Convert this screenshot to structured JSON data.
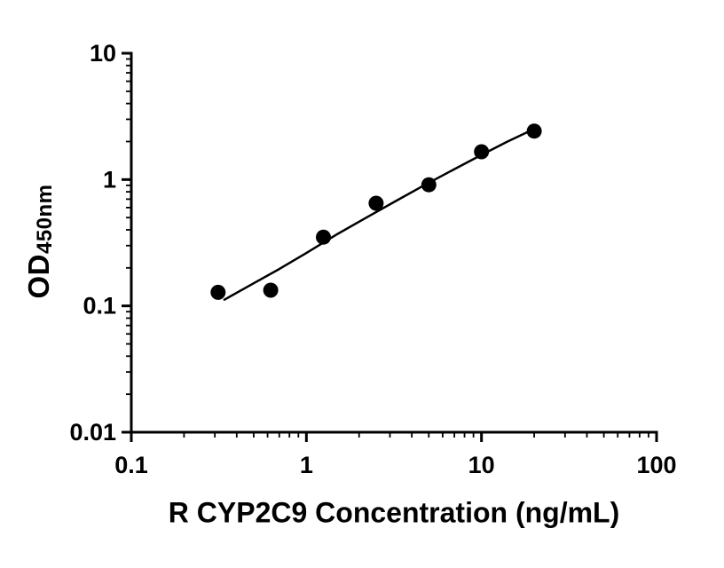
{
  "chart_data": {
    "type": "scatter",
    "title": "",
    "xlabel": "R CYP2C9 Concentration (ng/mL)",
    "ylabel_main": "OD",
    "ylabel_sub": "450nm",
    "x_scale": "log",
    "y_scale": "log",
    "xlim": [
      0.1,
      100
    ],
    "ylim": [
      0.01,
      10
    ],
    "x_ticks": [
      0.1,
      1,
      10,
      100
    ],
    "x_tick_labels": [
      "0.1",
      "1",
      "10",
      "100"
    ],
    "y_ticks": [
      0.01,
      0.1,
      1,
      10
    ],
    "y_tick_labels": [
      "0.01",
      "0.1",
      "1",
      "10"
    ],
    "minor_ticks": true,
    "grid": false,
    "legend": null,
    "background_color": "#ffffff",
    "axis_color": "#000000",
    "point_color": "#000000",
    "line_color": "#000000",
    "points": [
      {
        "x": 0.313,
        "y": 0.128
      },
      {
        "x": 0.625,
        "y": 0.133
      },
      {
        "x": 1.25,
        "y": 0.35
      },
      {
        "x": 2.5,
        "y": 0.65
      },
      {
        "x": 5,
        "y": 0.91
      },
      {
        "x": 10,
        "y": 1.66
      },
      {
        "x": 20,
        "y": 2.42
      }
    ],
    "fit_curve": [
      {
        "x": 0.34,
        "y": 0.112
      },
      {
        "x": 0.5,
        "y": 0.151
      },
      {
        "x": 0.7,
        "y": 0.196
      },
      {
        "x": 1.0,
        "y": 0.262
      },
      {
        "x": 1.5,
        "y": 0.37
      },
      {
        "x": 2.2,
        "y": 0.5
      },
      {
        "x": 3.2,
        "y": 0.67
      },
      {
        "x": 4.7,
        "y": 0.9
      },
      {
        "x": 7.0,
        "y": 1.21
      },
      {
        "x": 10.0,
        "y": 1.57
      },
      {
        "x": 14.0,
        "y": 1.99
      },
      {
        "x": 20.0,
        "y": 2.52
      }
    ]
  }
}
